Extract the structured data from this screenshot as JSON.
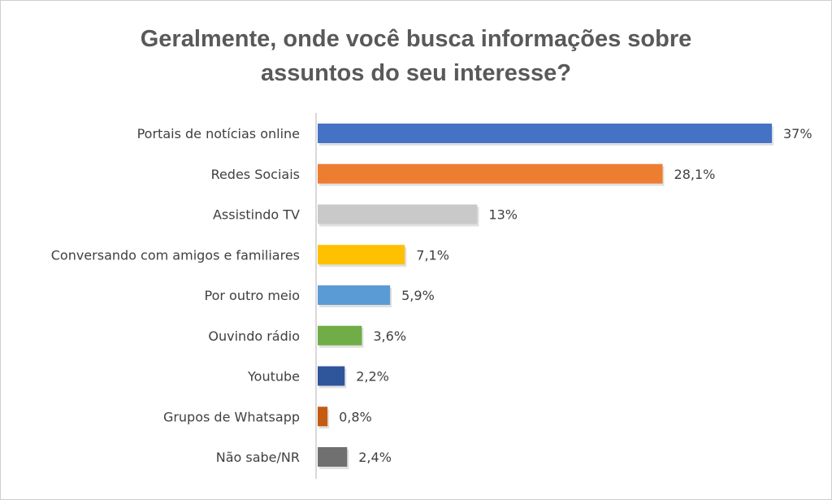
{
  "chart_data": {
    "type": "bar",
    "orientation": "horizontal",
    "title": [
      "Geralmente, onde você busca informações sobre",
      "assuntos do seu interesse?"
    ],
    "categories": [
      "Portais de notícias online",
      "Redes Sociais",
      "Assistindo TV",
      "Conversando com amigos e familiares",
      "Por outro meio",
      "Ouvindo rádio",
      "Youtube",
      "Grupos de Whatsapp",
      "Não sabe/NR"
    ],
    "values": [
      37,
      28.1,
      13,
      7.1,
      5.9,
      3.6,
      2.2,
      0.8,
      2.4
    ],
    "data_labels": [
      "37%",
      "28,1%",
      "13%",
      "7,1%",
      "5,9%",
      "3,6%",
      "2,2%",
      "0,8%",
      "2,4%"
    ],
    "colors": [
      "#4472C4",
      "#ED7D31",
      "#C9C9C9",
      "#FFC000",
      "#5B9BD5",
      "#70AD47",
      "#2F559B",
      "#C55A11",
      "#707070"
    ],
    "xlim": [
      0,
      37
    ],
    "grid": false,
    "legend": "none"
  }
}
